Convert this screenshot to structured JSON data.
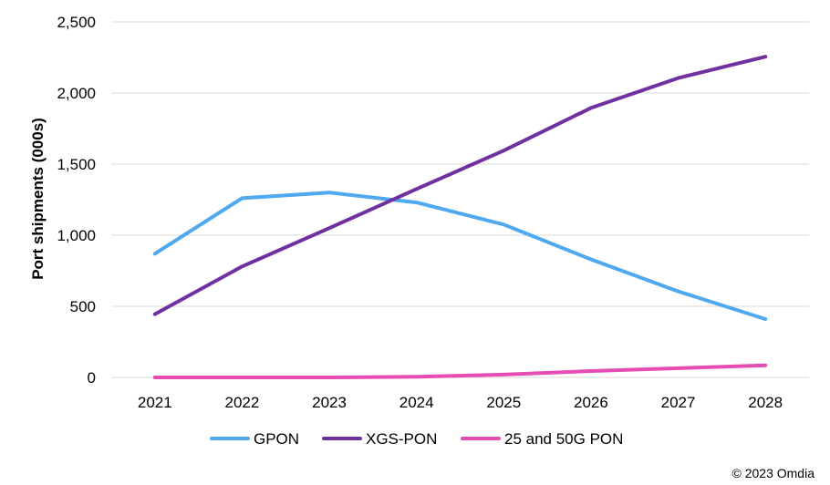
{
  "chart_data": {
    "type": "line",
    "title": "",
    "xlabel": "",
    "ylabel": "Port shipments (000s)",
    "categories": [
      "2021",
      "2022",
      "2023",
      "2024",
      "2025",
      "2026",
      "2027",
      "2028"
    ],
    "ylim": [
      0,
      2500
    ],
    "yticks": [
      0,
      500,
      1000,
      1500,
      2000,
      2500
    ],
    "ytick_labels": [
      "0",
      "500",
      "1,000",
      "1,500",
      "2,000",
      "2,500"
    ],
    "grid": "horizontal",
    "legend_position": "bottom",
    "series": [
      {
        "name": "GPON",
        "color": "#4EA9F0",
        "values": [
          870,
          1260,
          1300,
          1230,
          1075,
          830,
          605,
          410
        ]
      },
      {
        "name": "XGS-PON",
        "color": "#7030A0",
        "values": [
          445,
          780,
          1050,
          1325,
          1595,
          1895,
          2105,
          2255
        ]
      },
      {
        "name": "25 and 50G PON",
        "color": "#E54DB5",
        "values": [
          0,
          0,
          0,
          5,
          20,
          45,
          65,
          85
        ]
      }
    ]
  },
  "copyright": "© 2023 Omdia"
}
